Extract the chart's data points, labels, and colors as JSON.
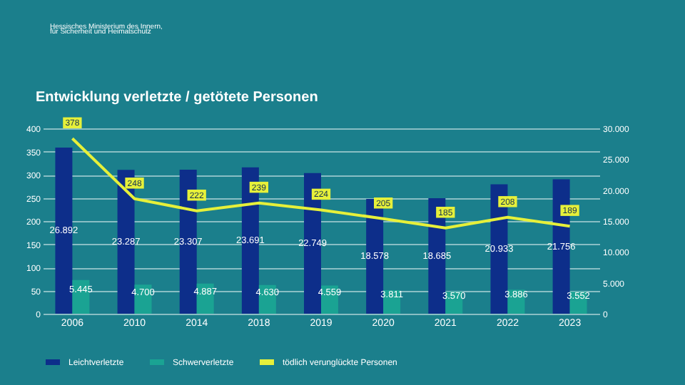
{
  "chart_data": {
    "type": "bar",
    "title": "Entwicklung verletzte / getötete Personen",
    "annotations": [
      "Hessisches Ministerium des Innern,",
      "für Sicherheit und Heimatschutz"
    ],
    "categories": [
      "2006",
      "2010",
      "2014",
      "2018",
      "2019",
      "2020",
      "2021",
      "2022",
      "2023"
    ],
    "series": [
      {
        "name": "Leichtverletzte",
        "color": "#0d2e8a",
        "axis": "y2",
        "values": [
          26892,
          23287,
          23307,
          23691,
          22749,
          18578,
          18685,
          20933,
          21756
        ],
        "value_labels": [
          "26.892",
          "23.287",
          "23.307",
          "23.691",
          "22.749",
          "18.578",
          "18.685",
          "20.933",
          "21.756"
        ]
      },
      {
        "name": "Schwerverletzte",
        "color": "#1aa393",
        "axis": "y2",
        "values": [
          5445,
          4700,
          4887,
          4630,
          4559,
          3811,
          3570,
          3886,
          3552
        ],
        "value_labels": [
          "5.445",
          "4.700",
          "4.887",
          "4.630",
          "4.559",
          "3.811",
          "3.570",
          "3.886",
          "3.552"
        ]
      },
      {
        "name": "tödlich verunglückte Personen",
        "type": "line",
        "color": "#e6f03a",
        "axis": "y",
        "values": [
          378,
          248,
          222,
          239,
          224,
          205,
          185,
          208,
          189
        ],
        "value_labels": [
          "378",
          "248",
          "222",
          "239",
          "224",
          "205",
          "185",
          "208",
          "189"
        ]
      }
    ],
    "ylim": [
      0,
      400
    ],
    "yticks": [
      0,
      50,
      100,
      150,
      200,
      250,
      300,
      350,
      400
    ],
    "y2lim": [
      0,
      30000
    ],
    "y2ticks": [
      {
        "value": 0,
        "label": "0"
      },
      {
        "value": 5000,
        "label": "5.000"
      },
      {
        "value": 10000,
        "label": "10.000"
      },
      {
        "value": 15000,
        "label": "15.000"
      },
      {
        "value": 20000,
        "label": "20.000"
      },
      {
        "value": 25000,
        "label": "25.000"
      },
      {
        "value": 30000,
        "label": "30.000"
      }
    ],
    "grid": "y",
    "legend": "bottom"
  }
}
